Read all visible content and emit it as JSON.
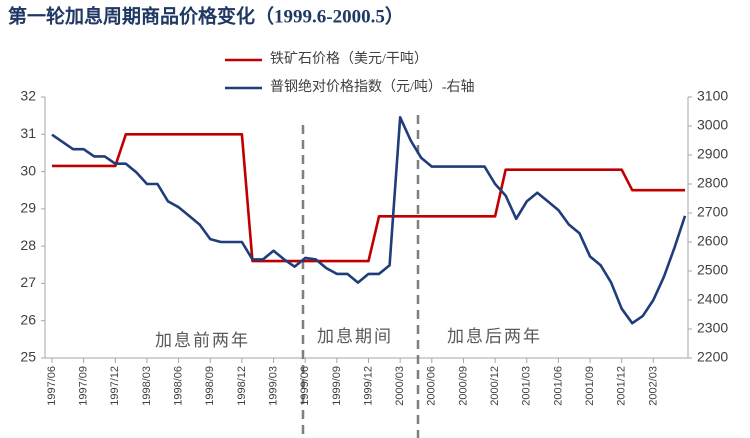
{
  "chart_data": {
    "type": "line",
    "title": "第一轮加息周期商品价格变化（1999.6-2000.5）",
    "annotations": [
      "加息前两年",
      "加息期间",
      "加息后两年"
    ],
    "categories": [
      "1997/06",
      null,
      null,
      "1997/09",
      null,
      null,
      "1997/12",
      null,
      null,
      "1998/03",
      null,
      null,
      "1998/06",
      null,
      null,
      "1998/09",
      null,
      null,
      "1998/12",
      null,
      null,
      "1999/03",
      null,
      null,
      "1999/06",
      null,
      null,
      "1999/09",
      null,
      null,
      "1999/12",
      null,
      null,
      "2000/03",
      null,
      null,
      "2000/06",
      null,
      null,
      "2000/09",
      null,
      null,
      "2000/12",
      null,
      null,
      "2001/03",
      null,
      null,
      "2001/06",
      null,
      null,
      "2001/09",
      null,
      null,
      "2001/12",
      null,
      null,
      "2002/03",
      null,
      null,
      null
    ],
    "series": [
      {
        "name": "铁矿石价格（美元/干吨）",
        "color": "#c00000",
        "values": [
          30.15,
          30.15,
          30.15,
          30.15,
          30.15,
          30.15,
          30.15,
          31,
          31,
          31,
          31,
          31,
          31,
          31,
          31,
          31,
          31,
          31,
          31,
          27.6,
          27.6,
          27.6,
          27.6,
          27.6,
          27.6,
          27.6,
          27.6,
          27.6,
          27.6,
          27.6,
          27.6,
          28.8,
          28.8,
          28.8,
          28.8,
          28.8,
          28.8,
          28.8,
          28.8,
          28.8,
          28.8,
          28.8,
          28.8,
          30.05,
          30.05,
          30.05,
          30.05,
          30.05,
          30.05,
          30.05,
          30.05,
          30.05,
          30.05,
          30.05,
          30.05,
          29.5,
          29.5,
          29.5,
          29.5,
          29.5,
          29.5
        ]
      },
      {
        "name": "普钢绝对价格指数（元/吨）-右轴",
        "color": "#1f3d7a",
        "axis": "y2",
        "values": [
          2970,
          2945,
          2920,
          2920,
          2895,
          2895,
          2870,
          2870,
          2840,
          2800,
          2800,
          2740,
          2720,
          2690,
          2660,
          2610,
          2600,
          2600,
          2600,
          2540,
          2540,
          2570,
          2540,
          2515,
          2545,
          2540,
          2510,
          2490,
          2490,
          2460,
          2490,
          2490,
          2520,
          3030,
          2950,
          2890,
          2860,
          2860,
          2860,
          2860,
          2860,
          2860,
          2800,
          2760,
          2680,
          2740,
          2770,
          2740,
          2710,
          2660,
          2630,
          2550,
          2520,
          2460,
          2370,
          2320,
          2345,
          2400,
          2480,
          2580,
          2690
        ]
      }
    ],
    "ylim": [
      25,
      32
    ],
    "yticks": [
      25,
      26,
      27,
      28,
      29,
      30,
      31,
      32
    ],
    "y2lim": [
      2200,
      3100
    ],
    "y2ticks": [
      2200,
      2300,
      2400,
      2500,
      2600,
      2700,
      2800,
      2900,
      3000,
      3100
    ],
    "grid": false
  }
}
